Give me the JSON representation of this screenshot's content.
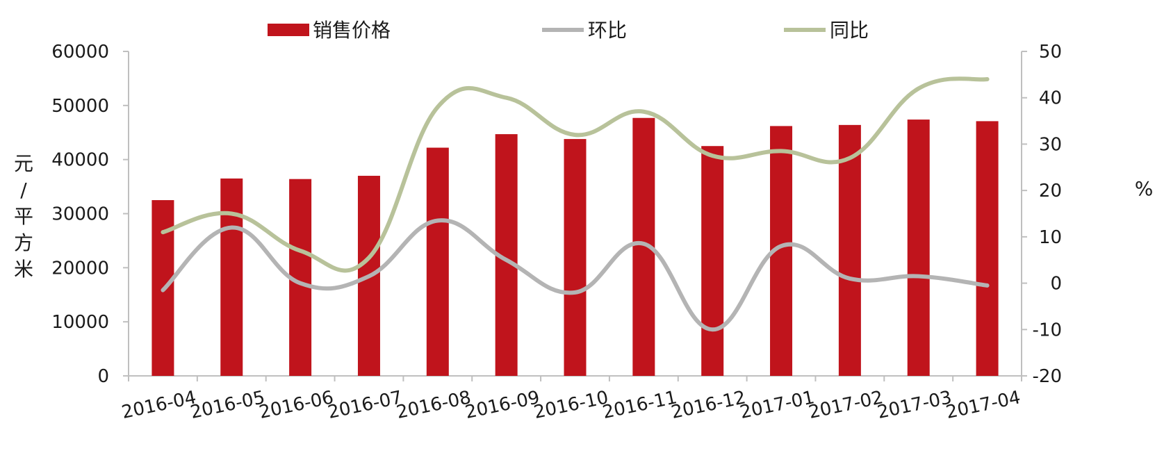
{
  "chart_data": {
    "type": "bar",
    "categories": [
      "2016-04",
      "2016-05",
      "2016-06",
      "2016-07",
      "2016-08",
      "2016-09",
      "2016-10",
      "2016-11",
      "2016-12",
      "2017-01",
      "2017-02",
      "2017-03",
      "2017-04"
    ],
    "series": [
      {
        "name": "销售价格",
        "type": "bar",
        "axis": "left",
        "color": "#c0141c",
        "values": [
          32500,
          36500,
          36400,
          37000,
          42200,
          44700,
          43800,
          47700,
          42500,
          46200,
          46400,
          47400,
          47100
        ]
      },
      {
        "name": "环比",
        "type": "line",
        "axis": "right",
        "color": "#b4b4b4",
        "values": [
          -1.5,
          12,
          0,
          1.5,
          13.5,
          5,
          -2,
          8.5,
          -10,
          8,
          1,
          1.5,
          -0.5
        ]
      },
      {
        "name": "同比",
        "type": "line",
        "axis": "right",
        "color": "#b8c29a",
        "values": [
          11,
          15,
          7,
          5.5,
          38,
          40,
          32,
          37,
          27.5,
          28.5,
          27,
          42,
          44
        ]
      }
    ],
    "y_left": {
      "label": "元/平方米",
      "range": [
        0,
        60000
      ],
      "ticks": [
        "0",
        "10000",
        "20000",
        "30000",
        "40000",
        "50000",
        "60000"
      ]
    },
    "y_right": {
      "label": "%",
      "range": [
        -20,
        50
      ],
      "ticks": [
        "-20",
        "-10",
        "0",
        "10",
        "20",
        "30",
        "40",
        "50"
      ]
    },
    "legend_position": "top",
    "grid": false
  }
}
